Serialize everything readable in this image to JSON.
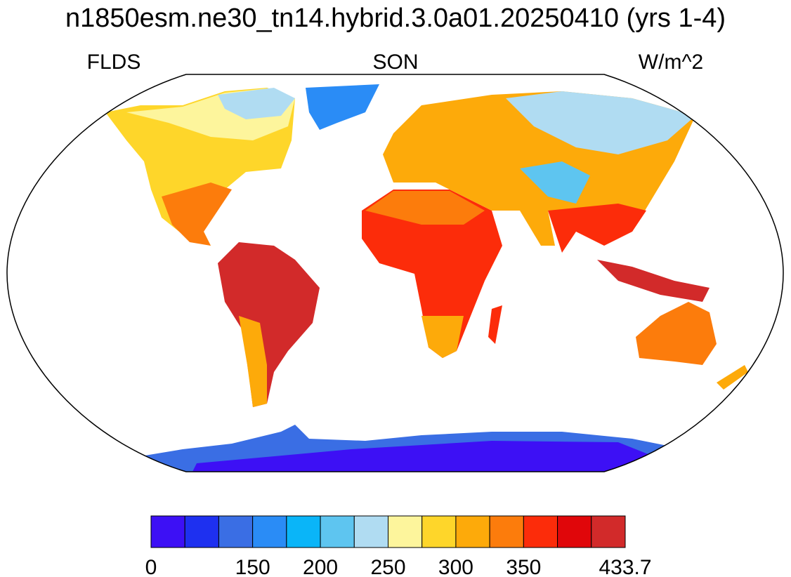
{
  "header": {
    "title": "n1850esm.ne30_tn14.hybrid.3.0a01.20250410 (yrs 1-4)",
    "left": "FLDS",
    "center": "SON",
    "right": "W/m^2"
  },
  "colorbar": {
    "colors": [
      "#3d10f5",
      "#1e30f0",
      "#3a6ee4",
      "#2a8cf6",
      "#0ab5f8",
      "#5ec5f0",
      "#b0dcf2",
      "#fdf59c",
      "#fed62a",
      "#fdaa0a",
      "#fc7c0c",
      "#fc2c0a",
      "#e0060a",
      "#d22a2a"
    ],
    "labels": [
      "0",
      "150",
      "200",
      "250",
      "300",
      "350",
      "433.7"
    ]
  }
}
